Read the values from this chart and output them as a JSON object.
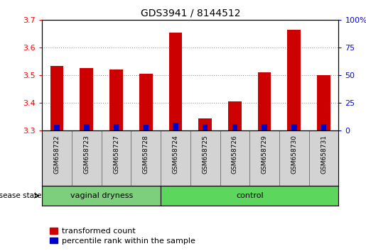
{
  "title": "GDS3941 / 8144512",
  "samples": [
    "GSM658722",
    "GSM658723",
    "GSM658727",
    "GSM658728",
    "GSM658724",
    "GSM658725",
    "GSM658726",
    "GSM658729",
    "GSM658730",
    "GSM658731"
  ],
  "transformed_count": [
    3.535,
    3.525,
    3.522,
    3.505,
    3.655,
    3.345,
    3.405,
    3.51,
    3.665,
    3.5
  ],
  "percentile_rank": [
    5.0,
    6.0,
    6.0,
    5.0,
    7.0,
    6.0,
    6.0,
    6.0,
    6.0,
    6.0
  ],
  "groups": [
    "vaginal dryness",
    "vaginal dryness",
    "vaginal dryness",
    "vaginal dryness",
    "control",
    "control",
    "control",
    "control",
    "control",
    "control"
  ],
  "bar_color_red": "#CC0000",
  "bar_color_blue": "#0000CC",
  "ylim_left": [
    3.3,
    3.7
  ],
  "ylim_right": [
    0,
    100
  ],
  "yticks_left": [
    3.3,
    3.4,
    3.5,
    3.6,
    3.7
  ],
  "yticks_right": [
    0,
    25,
    50,
    75,
    100
  ],
  "grid_color": "#999999",
  "vaginal_count": 4,
  "control_count": 6,
  "base_value": 3.3,
  "label_box_color": "#d3d3d3",
  "vaginal_color": "#7dce7d",
  "control_color": "#5cd65c"
}
